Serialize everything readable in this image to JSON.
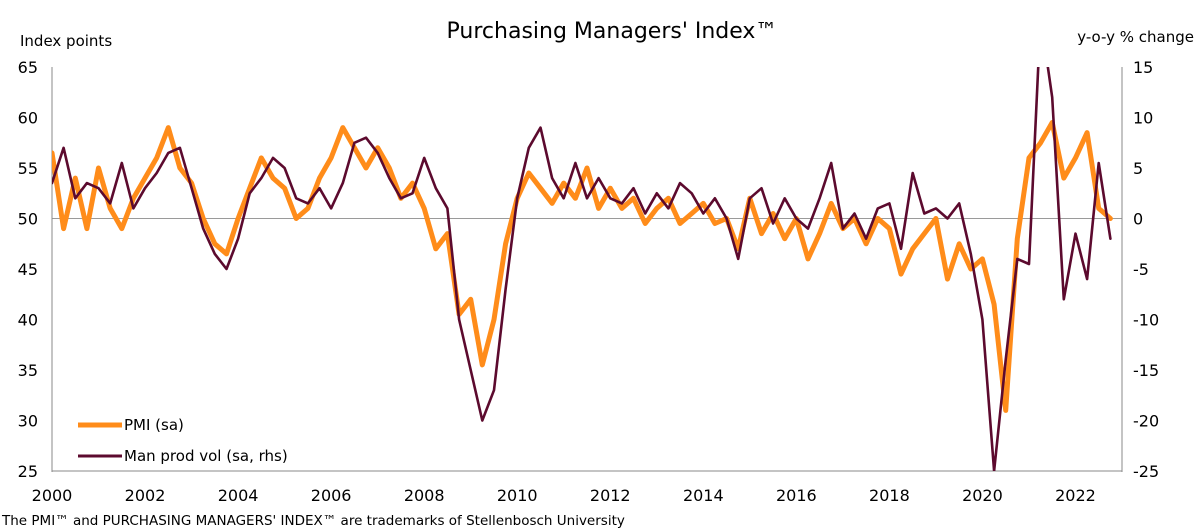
{
  "chart_data": {
    "type": "line",
    "title": "Purchasing Managers' Index™",
    "ylabel_left": "Index points",
    "ylabel_right": "y-o-y % change",
    "footnote": "The PMI™ and PURCHASING MANAGERS' INDEX™ are trademarks of Stellenbosch University",
    "ylim_left": [
      25,
      65
    ],
    "ylim_right": [
      -25,
      15
    ],
    "xlim": [
      2000,
      2023
    ],
    "x_ticks": [
      "2000",
      "2002",
      "2004",
      "2006",
      "2008",
      "2010",
      "2012",
      "2014",
      "2016",
      "2018",
      "2020",
      "2022"
    ],
    "y_ticks_left": [
      "65",
      "60",
      "55",
      "50",
      "45",
      "40",
      "35",
      "30",
      "25"
    ],
    "y_ticks_right": [
      "15",
      "10",
      "5",
      "0",
      "-5",
      "-10",
      "-15",
      "-20",
      "-25"
    ],
    "reference_line": {
      "axis": "left",
      "value": 50
    },
    "legend": {
      "placement": "bottom-left"
    },
    "series": [
      {
        "name": "PMI (sa)",
        "axis": "left",
        "color": "#FF8C1A",
        "x": [
          2000.0,
          2000.25,
          2000.5,
          2000.75,
          2001.0,
          2001.25,
          2001.5,
          2001.75,
          2002.0,
          2002.25,
          2002.5,
          2002.75,
          2003.0,
          2003.25,
          2003.5,
          2003.75,
          2004.0,
          2004.25,
          2004.5,
          2004.75,
          2005.0,
          2005.25,
          2005.5,
          2005.75,
          2006.0,
          2006.25,
          2006.5,
          2006.75,
          2007.0,
          2007.25,
          2007.5,
          2007.75,
          2008.0,
          2008.25,
          2008.5,
          2008.75,
          2009.0,
          2009.25,
          2009.5,
          2009.75,
          2010.0,
          2010.25,
          2010.5,
          2010.75,
          2011.0,
          2011.25,
          2011.5,
          2011.75,
          2012.0,
          2012.25,
          2012.5,
          2012.75,
          2013.0,
          2013.25,
          2013.5,
          2013.75,
          2014.0,
          2014.25,
          2014.5,
          2014.75,
          2015.0,
          2015.25,
          2015.5,
          2015.75,
          2016.0,
          2016.25,
          2016.5,
          2016.75,
          2017.0,
          2017.25,
          2017.5,
          2017.75,
          2018.0,
          2018.25,
          2018.5,
          2018.75,
          2019.0,
          2019.25,
          2019.5,
          2019.75,
          2020.0,
          2020.25,
          2020.5,
          2020.75,
          2021.0,
          2021.25,
          2021.5,
          2021.75,
          2022.0,
          2022.25,
          2022.5,
          2022.75
        ],
        "values": [
          56.5,
          49.0,
          54.0,
          49.0,
          55.0,
          51.0,
          49.0,
          52.0,
          54.0,
          56.0,
          59.0,
          55.0,
          53.5,
          50.0,
          47.5,
          46.5,
          50.0,
          53.0,
          56.0,
          54.0,
          53.0,
          50.0,
          51.0,
          54.0,
          56.0,
          59.0,
          57.0,
          55.0,
          57.0,
          55.0,
          52.0,
          53.5,
          51.0,
          47.0,
          48.5,
          40.5,
          42.0,
          35.5,
          40.0,
          47.5,
          52.0,
          54.5,
          53.0,
          51.5,
          53.5,
          52.0,
          55.0,
          51.0,
          53.0,
          51.0,
          52.0,
          49.5,
          51.0,
          52.0,
          49.5,
          50.5,
          51.5,
          49.5,
          50.0,
          47.0,
          52.0,
          48.5,
          50.5,
          48.0,
          50.0,
          46.0,
          48.5,
          51.5,
          49.0,
          50.0,
          47.5,
          50.0,
          49.0,
          44.5,
          47.0,
          48.5,
          50.0,
          44.0,
          47.5,
          45.0,
          46.0,
          41.5,
          31.0,
          48.0,
          56.0,
          57.5,
          59.5,
          54.0,
          56.0,
          58.5,
          51.0,
          50.0
        ]
      },
      {
        "name": "Man prod vol (sa, rhs)",
        "axis": "right",
        "color": "#5C0A2E",
        "x": [
          2000.0,
          2000.25,
          2000.5,
          2000.75,
          2001.0,
          2001.25,
          2001.5,
          2001.75,
          2002.0,
          2002.25,
          2002.5,
          2002.75,
          2003.0,
          2003.25,
          2003.5,
          2003.75,
          2004.0,
          2004.25,
          2004.5,
          2004.75,
          2005.0,
          2005.25,
          2005.5,
          2005.75,
          2006.0,
          2006.25,
          2006.5,
          2006.75,
          2007.0,
          2007.25,
          2007.5,
          2007.75,
          2008.0,
          2008.25,
          2008.5,
          2008.75,
          2009.0,
          2009.25,
          2009.5,
          2009.75,
          2010.0,
          2010.25,
          2010.5,
          2010.75,
          2011.0,
          2011.25,
          2011.5,
          2011.75,
          2012.0,
          2012.25,
          2012.5,
          2012.75,
          2013.0,
          2013.25,
          2013.5,
          2013.75,
          2014.0,
          2014.25,
          2014.5,
          2014.75,
          2015.0,
          2015.25,
          2015.5,
          2015.75,
          2016.0,
          2016.25,
          2016.5,
          2016.75,
          2017.0,
          2017.25,
          2017.5,
          2017.75,
          2018.0,
          2018.25,
          2018.5,
          2018.75,
          2019.0,
          2019.25,
          2019.5,
          2019.75,
          2020.0,
          2020.25,
          2020.5,
          2020.75,
          2021.0,
          2021.25,
          2021.5,
          2021.75,
          2022.0,
          2022.25,
          2022.5,
          2022.75
        ],
        "values": [
          3.5,
          7.0,
          2.0,
          3.5,
          3.0,
          1.5,
          5.5,
          1.0,
          3.0,
          4.5,
          6.5,
          7.0,
          3.0,
          -1.0,
          -3.5,
          -5.0,
          -2.0,
          2.5,
          4.0,
          6.0,
          5.0,
          2.0,
          1.5,
          3.0,
          1.0,
          3.5,
          7.5,
          8.0,
          6.5,
          4.0,
          2.0,
          2.5,
          6.0,
          3.0,
          1.0,
          -10.0,
          -15.0,
          -20.0,
          -17.0,
          -7.0,
          2.0,
          7.0,
          9.0,
          4.0,
          2.0,
          5.5,
          2.0,
          4.0,
          2.0,
          1.5,
          3.0,
          0.5,
          2.5,
          1.0,
          3.5,
          2.5,
          0.5,
          2.0,
          0.0,
          -4.0,
          2.0,
          3.0,
          -0.5,
          2.0,
          0.0,
          -1.0,
          2.0,
          5.5,
          -1.0,
          0.5,
          -2.0,
          1.0,
          1.5,
          -3.0,
          4.5,
          0.5,
          1.0,
          0.0,
          1.5,
          -3.5,
          -10.0,
          -25.0,
          -14.0,
          -4.0,
          -4.5,
          20.0,
          12.0,
          -8.0,
          -1.5,
          -6.0,
          5.5,
          -2.0
        ]
      }
    ]
  }
}
